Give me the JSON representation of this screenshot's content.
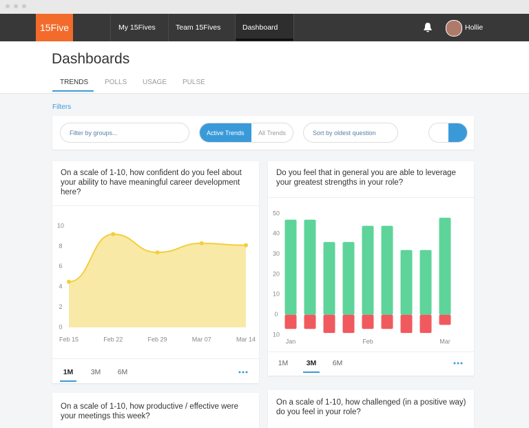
{
  "nav": {
    "logo": "15Five",
    "items": [
      "My 15Fives",
      "Team 15Fives",
      "Dashboard"
    ],
    "user": "Hollie"
  },
  "header": {
    "title": "Dashboards",
    "tabs": [
      "TRENDS",
      "POLLS",
      "USAGE",
      "PULSE"
    ]
  },
  "filters": {
    "label": "Filters",
    "group_placeholder": "Filter by groups...",
    "toggle": [
      "Active Trends",
      "All Trends"
    ],
    "sort": "Sort by oldest question"
  },
  "chart_data": [
    {
      "type": "area",
      "title": "On a scale of 1-10, how confident do you feel about your ability to have meaningful career development here?",
      "categories": [
        "Feb 15",
        "Feb 22",
        "Feb 29",
        "Mar 07",
        "Mar 14"
      ],
      "values": [
        4.5,
        9.2,
        7.4,
        8.3,
        8.1
      ],
      "color": "#f2cf3b",
      "ylim": [
        0,
        10
      ],
      "yticks": [
        0,
        2,
        4,
        6,
        8,
        10
      ],
      "ranges": [
        "1M",
        "3M",
        "6M"
      ],
      "active_range": 0
    },
    {
      "type": "bar",
      "title": "Do you feel that in general you are able to leverage your greatest strengths in your role?",
      "categories": [
        "Jan",
        null,
        null,
        null,
        "Feb",
        null,
        null,
        null,
        "Mar"
      ],
      "series": [
        {
          "color": "#5ed49a",
          "values": [
            47,
            47,
            36,
            36,
            44,
            44,
            32,
            32,
            48
          ]
        },
        {
          "color": "#f05a5e",
          "values": [
            -7,
            -7,
            -9,
            -9,
            -7,
            -7,
            -9,
            -9,
            -5
          ]
        }
      ],
      "ylim": [
        -10,
        50
      ],
      "yticks": [
        {
          "value": -10,
          "label": "10"
        },
        0,
        10,
        20,
        30,
        40,
        50
      ],
      "ranges": [
        "1M",
        "3M",
        "6M"
      ],
      "active_range": 1
    }
  ],
  "more_cards": [
    "On a scale of 1-10, how productive / effective were your meetings this week?",
    "On a scale of 1-10, how challenged (in a positive way) do you feel in your role?"
  ]
}
